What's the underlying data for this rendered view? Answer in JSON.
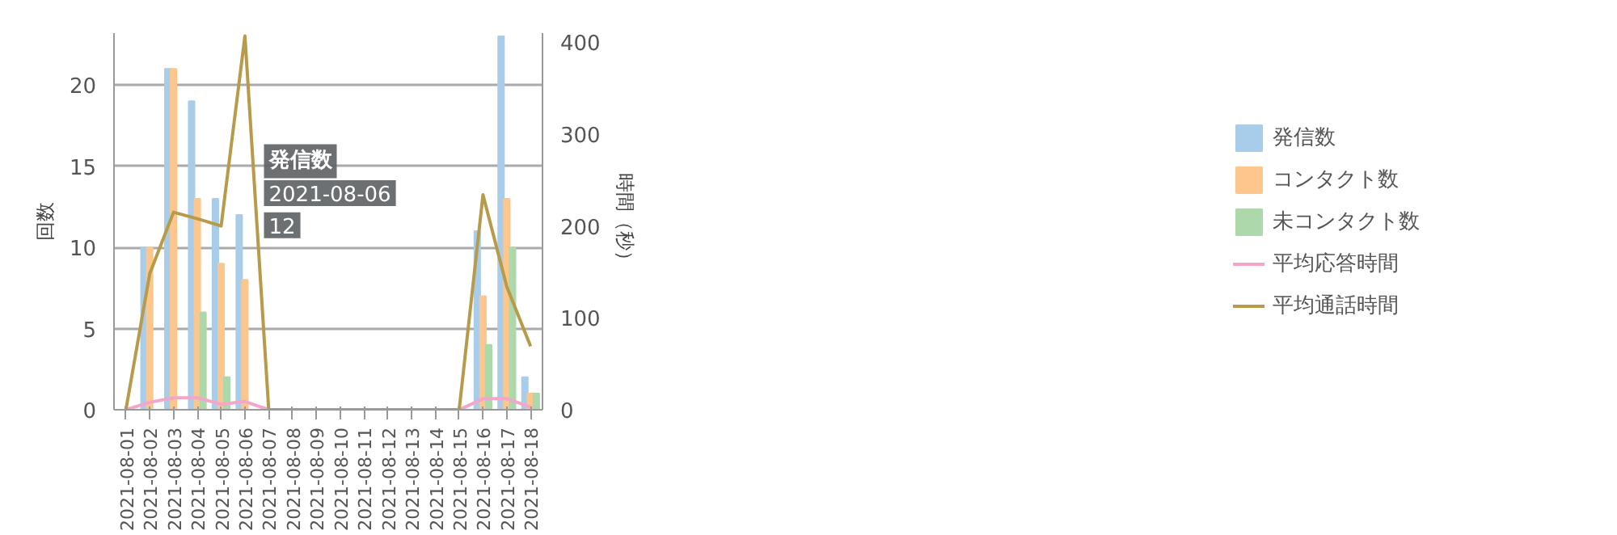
{
  "chart_data": {
    "type": "bar",
    "ylabel": "回数",
    "y2label": "時間（秒）",
    "categories": [
      "2021-08-01",
      "2021-08-02",
      "2021-08-03",
      "2021-08-04",
      "2021-08-05",
      "2021-08-06",
      "2021-08-07",
      "2021-08-08",
      "2021-08-09",
      "2021-08-10",
      "2021-08-11",
      "2021-08-12",
      "2021-08-13",
      "2021-08-14",
      "2021-08-15",
      "2021-08-16",
      "2021-08-17",
      "2021-08-18"
    ],
    "series": [
      {
        "name": "発信数",
        "color": "#a8cdeb",
        "values": [
          0,
          10,
          21,
          19,
          13,
          12,
          0,
          0,
          0,
          0,
          0,
          0,
          0,
          0,
          0,
          11,
          23,
          2
        ]
      },
      {
        "name": "コンタクト数",
        "color": "#fdc68c",
        "values": [
          0,
          10,
          21,
          13,
          9,
          8,
          0,
          0,
          0,
          0,
          0,
          0,
          0,
          0,
          0,
          7,
          13,
          1
        ]
      },
      {
        "name": "未コンタクト数",
        "color": "#acd8ac",
        "values": [
          0,
          0,
          0,
          6,
          2,
          0,
          0,
          0,
          0,
          0,
          0,
          0,
          0,
          0,
          0,
          4,
          10,
          1
        ]
      },
      {
        "name": "平均応答時間",
        "type": "line",
        "axis": "y2",
        "color": "#f4a6c8",
        "values": [
          0,
          8,
          13,
          13,
          6,
          9,
          0,
          0,
          0,
          0,
          0,
          0,
          0,
          0,
          0,
          12,
          12,
          3
        ]
      },
      {
        "name": "平均通話時間",
        "type": "line",
        "axis": "y2",
        "color": "#b89b4a",
        "values": [
          0,
          148,
          215,
          208,
          200,
          407,
          0,
          0,
          0,
          0,
          0,
          0,
          0,
          0,
          0,
          234,
          134,
          69
        ]
      }
    ],
    "ylim": [
      0,
      23.2
    ],
    "yticks": [
      0,
      5,
      10,
      15,
      20
    ],
    "y2lim": [
      0,
      410
    ],
    "y2ticks": [
      0,
      100,
      200,
      300,
      400
    ],
    "grid": "y",
    "legend": "right",
    "annotations": [
      "発信数",
      "2021-08-06",
      "12"
    ]
  }
}
